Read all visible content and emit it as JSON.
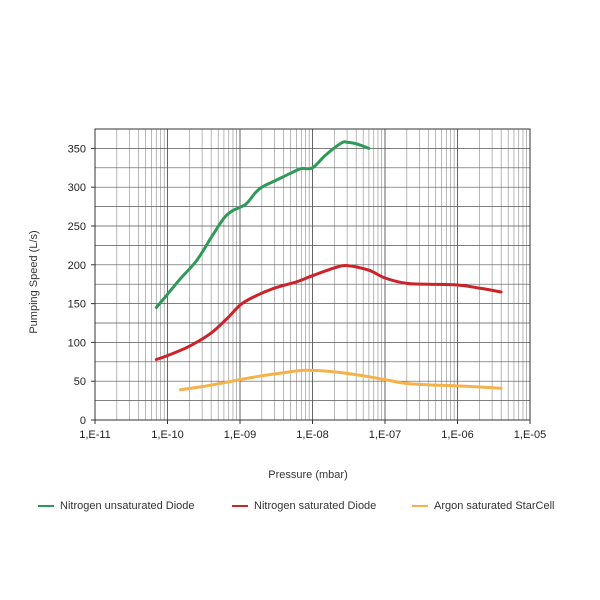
{
  "chart_data": {
    "type": "line",
    "title": "",
    "xlabel": "Pressure (mbar)",
    "ylabel": "Pumping Speed (L/s)",
    "x_scale": "log",
    "xlim": [
      1e-11,
      1e-05
    ],
    "ylim": [
      0,
      375
    ],
    "x_tick_values": [
      1e-11,
      1e-10,
      1e-09,
      1e-08,
      1e-07,
      1e-06,
      1e-05
    ],
    "x_tick_labels": [
      "1,E-11",
      "1,E-10",
      "1,E-09",
      "1,E-08",
      "1,E-07",
      "1,E-06",
      "1,E-05"
    ],
    "y_ticks": [
      0,
      50,
      100,
      150,
      200,
      250,
      300,
      350
    ],
    "grid": true,
    "legend_position": "bottom",
    "series": [
      {
        "name": "Nitrogen unsaturated Diode",
        "color": "#2e9a57",
        "x": [
          7e-11,
          1e-10,
          1.5e-10,
          2.5e-10,
          4e-10,
          6e-10,
          8e-10,
          1.2e-09,
          1.6e-09,
          2e-09,
          3e-09,
          5e-09,
          7e-09,
          1e-08,
          1.5e-08,
          2.5e-08,
          3e-08,
          4e-08,
          6e-08
        ],
        "y": [
          145,
          162,
          182,
          205,
          235,
          260,
          270,
          278,
          292,
          300,
          308,
          318,
          324,
          325,
          341,
          357,
          358,
          356,
          350
        ]
      },
      {
        "name": "Nitrogen saturated Diode",
        "color": "#cc2229",
        "x": [
          7e-11,
          1e-10,
          2e-10,
          4e-10,
          7e-10,
          1e-09,
          1.5e-09,
          3e-09,
          6e-09,
          1e-08,
          2e-08,
          3e-08,
          6e-08,
          1e-07,
          2e-07,
          4e-07,
          1e-06,
          2e-06,
          4e-06
        ],
        "y": [
          78,
          83,
          95,
          112,
          133,
          148,
          158,
          170,
          178,
          186,
          196,
          199,
          193,
          183,
          176,
          175,
          174,
          170,
          165
        ]
      },
      {
        "name": "Argon saturated StarCell",
        "color": "#f5b24a",
        "x": [
          1.5e-10,
          3e-10,
          6e-10,
          1e-09,
          2e-09,
          4e-09,
          8e-09,
          2e-08,
          5e-08,
          1e-07,
          2e-07,
          5e-07,
          1e-06,
          4e-06
        ],
        "y": [
          39,
          43,
          48,
          52,
          57,
          61,
          64,
          62,
          57,
          52,
          47,
          45,
          44,
          41
        ]
      }
    ]
  }
}
